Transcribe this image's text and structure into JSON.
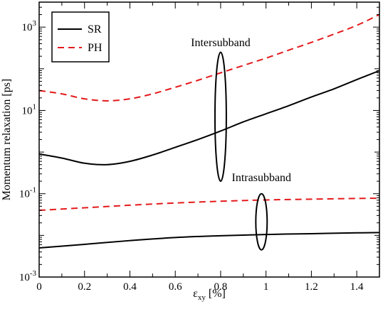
{
  "chart_data": {
    "type": "line",
    "xlabel_main": "ε",
    "xlabel_sub": "xy",
    "xlabel_unit": "[%]",
    "ylabel": "Momentum relaxation [ps]",
    "xlim": [
      0,
      1.5
    ],
    "ylim_log10": [
      -3,
      3.6
    ],
    "y_scale": "log",
    "x_ticks": [
      0,
      0.2,
      0.4,
      0.6,
      0.8,
      1,
      1.2,
      1.4
    ],
    "x_tick_labels": [
      "0",
      "0.2",
      "0.4",
      "0.6",
      "0.8",
      "1",
      "1.2",
      "1.4"
    ],
    "y_ticks": [
      {
        "base": "10",
        "exp": "-3",
        "value": 0.001
      },
      {
        "base": "10",
        "exp": "-1",
        "value": 0.1
      },
      {
        "base": "10",
        "exp": "1",
        "value": 10
      },
      {
        "base": "10",
        "exp": "3",
        "value": 1000
      }
    ],
    "legend": {
      "placement": "top-left",
      "entries": [
        {
          "label": "SR",
          "color": "#000000",
          "dash": "solid"
        },
        {
          "label": "PH",
          "color": "#e41a1c",
          "dash": "dashed"
        }
      ]
    },
    "series": [
      {
        "group": "intersubband",
        "legend": "SR",
        "color": "#000000",
        "dash": "solid",
        "x": [
          0,
          0.1,
          0.2,
          0.3,
          0.4,
          0.5,
          0.6,
          0.7,
          0.8,
          0.9,
          1.0,
          1.1,
          1.2,
          1.3,
          1.4,
          1.5
        ],
        "y": [
          0.9,
          0.72,
          0.54,
          0.5,
          0.6,
          0.85,
          1.3,
          2.0,
          3.2,
          5.3,
          8.3,
          13,
          21,
          33,
          55,
          90
        ]
      },
      {
        "group": "intersubband",
        "legend": "PH",
        "color": "#e41a1c",
        "dash": "dashed",
        "x": [
          0,
          0.1,
          0.2,
          0.3,
          0.4,
          0.5,
          0.6,
          0.7,
          0.8,
          0.9,
          1.0,
          1.1,
          1.2,
          1.3,
          1.4,
          1.5
        ],
        "y": [
          30,
          25,
          19,
          17,
          19,
          25,
          36,
          53,
          80,
          120,
          180,
          280,
          430,
          680,
          1100,
          2000
        ]
      },
      {
        "group": "intrasubband",
        "legend": "SR",
        "color": "#000000",
        "dash": "solid",
        "x": [
          0,
          0.2,
          0.4,
          0.6,
          0.8,
          1.0,
          1.2,
          1.4,
          1.5
        ],
        "y": [
          0.005,
          0.0061,
          0.0075,
          0.0089,
          0.0098,
          0.0105,
          0.011,
          0.0115,
          0.0117
        ]
      },
      {
        "group": "intrasubband",
        "legend": "PH",
        "color": "#e41a1c",
        "dash": "dashed",
        "x": [
          0,
          0.2,
          0.4,
          0.6,
          0.8,
          1.0,
          1.2,
          1.4,
          1.5
        ],
        "y": [
          0.04,
          0.046,
          0.053,
          0.06,
          0.066,
          0.071,
          0.074,
          0.077,
          0.078
        ]
      }
    ],
    "annotations": [
      {
        "text": "Intersubband",
        "x": 0.8,
        "y": 350
      },
      {
        "text": "Intrasubband",
        "x": 0.98,
        "y": 0.2
      }
    ],
    "ellipses": [
      {
        "cx": 0.8,
        "y_low": 0.2,
        "y_high": 250,
        "rx": 0.025
      },
      {
        "cx": 0.98,
        "y_low": 0.0045,
        "y_high": 0.1,
        "rx": 0.025
      }
    ]
  }
}
